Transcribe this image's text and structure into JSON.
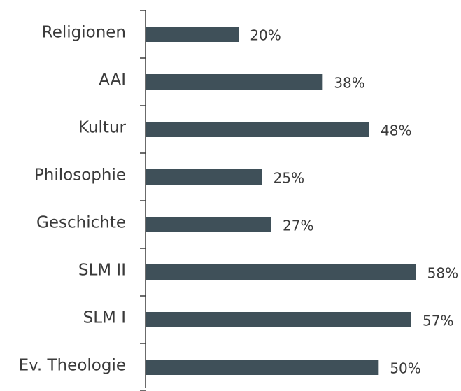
{
  "chart_data": {
    "type": "barh",
    "categories": [
      "Religionen",
      "AAI",
      "Kultur",
      "Philosophie",
      "Geschichte",
      "SLM II",
      "SLM I",
      "Ev. Theologie"
    ],
    "values": [
      20,
      38,
      48,
      25,
      27,
      58,
      57,
      50
    ],
    "value_labels": [
      "20%",
      "38%",
      "48%",
      "25%",
      "27%",
      "58%",
      "57%",
      "50%"
    ],
    "color": "#3f5059",
    "xlim": [
      0,
      60
    ]
  }
}
